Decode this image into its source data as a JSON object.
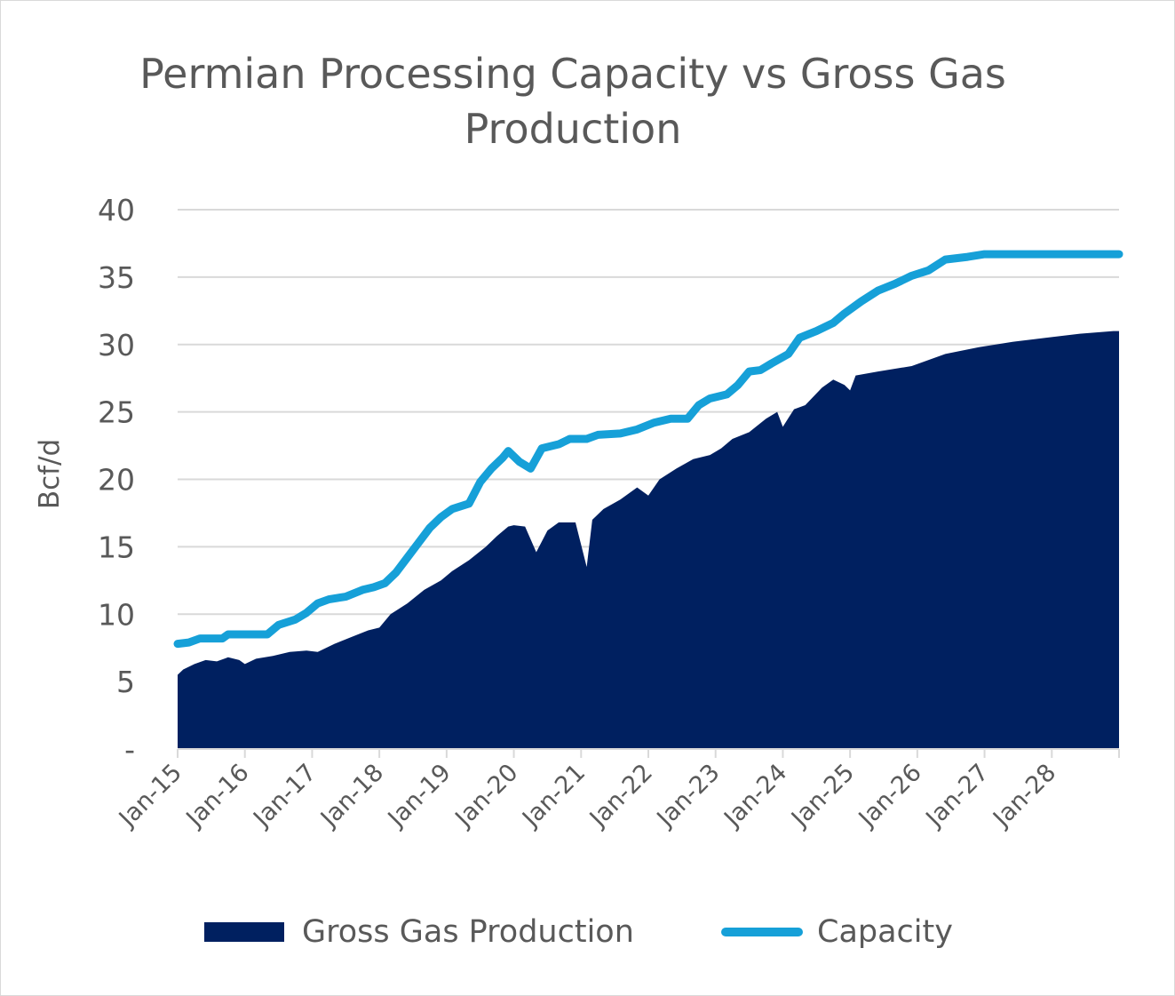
{
  "chart_data": {
    "type": "area",
    "title": "Permian Processing Capacity vs Gross Gas Production",
    "ylabel": "Bcf/d",
    "xlabel": "",
    "ylim": [
      0,
      40
    ],
    "yticks": [
      0,
      5,
      10,
      15,
      20,
      25,
      30,
      35,
      40
    ],
    "ytick_labels": [
      "-",
      "5",
      "10",
      "15",
      "20",
      "25",
      "30",
      "35",
      "40"
    ],
    "x_start": "2015-01",
    "x_end": "2028-12",
    "xtick_labels": [
      "Jan-15",
      "Jan-16",
      "Jan-17",
      "Jan-18",
      "Jan-19",
      "Jan-20",
      "Jan-21",
      "Jan-22",
      "Jan-23",
      "Jan-24",
      "Jan-25",
      "Jan-26",
      "Jan-27",
      "Jan-28"
    ],
    "grid": true,
    "legend_position": "bottom",
    "colors": {
      "production": "#002060",
      "capacity": "#16a0d8",
      "text": "#595959",
      "grid": "#d9d9d9"
    },
    "series": [
      {
        "name": "Gross Gas Production",
        "type": "area",
        "points": [
          [
            "2015-01",
            5.5
          ],
          [
            "2015-02",
            5.9
          ],
          [
            "2015-04",
            6.3
          ],
          [
            "2015-06",
            6.6
          ],
          [
            "2015-08",
            6.5
          ],
          [
            "2015-10",
            6.8
          ],
          [
            "2015-12",
            6.6
          ],
          [
            "2016-01",
            6.3
          ],
          [
            "2016-03",
            6.7
          ],
          [
            "2016-06",
            6.9
          ],
          [
            "2016-09",
            7.2
          ],
          [
            "2016-12",
            7.3
          ],
          [
            "2017-02",
            7.2
          ],
          [
            "2017-05",
            7.8
          ],
          [
            "2017-08",
            8.3
          ],
          [
            "2017-11",
            8.8
          ],
          [
            "2018-01",
            9.0
          ],
          [
            "2018-03",
            10.0
          ],
          [
            "2018-06",
            10.8
          ],
          [
            "2018-09",
            11.8
          ],
          [
            "2018-12",
            12.5
          ],
          [
            "2019-02",
            13.2
          ],
          [
            "2019-05",
            14.0
          ],
          [
            "2019-08",
            15.0
          ],
          [
            "2019-10",
            15.8
          ],
          [
            "2019-12",
            16.5
          ],
          [
            "2020-01",
            16.6
          ],
          [
            "2020-03",
            16.5
          ],
          [
            "2020-05",
            14.6
          ],
          [
            "2020-07",
            16.2
          ],
          [
            "2020-09",
            16.8
          ],
          [
            "2020-12",
            16.8
          ],
          [
            "2021-02",
            13.5
          ],
          [
            "2021-03",
            17.0
          ],
          [
            "2021-05",
            17.8
          ],
          [
            "2021-08",
            18.5
          ],
          [
            "2021-11",
            19.4
          ],
          [
            "2022-01",
            18.8
          ],
          [
            "2022-03",
            20.0
          ],
          [
            "2022-06",
            20.8
          ],
          [
            "2022-09",
            21.5
          ],
          [
            "2022-12",
            21.8
          ],
          [
            "2023-02",
            22.3
          ],
          [
            "2023-04",
            23.0
          ],
          [
            "2023-07",
            23.5
          ],
          [
            "2023-10",
            24.5
          ],
          [
            "2023-12",
            25.0
          ],
          [
            "2024-01",
            23.9
          ],
          [
            "2024-03",
            25.2
          ],
          [
            "2024-05",
            25.5
          ],
          [
            "2024-08",
            26.8
          ],
          [
            "2024-10",
            27.4
          ],
          [
            "2024-12",
            27.0
          ],
          [
            "2025-01",
            26.6
          ],
          [
            "2025-02",
            27.7
          ],
          [
            "2025-06",
            28.0
          ],
          [
            "2025-12",
            28.4
          ],
          [
            "2026-06",
            29.3
          ],
          [
            "2026-12",
            29.8
          ],
          [
            "2027-06",
            30.2
          ],
          [
            "2027-12",
            30.5
          ],
          [
            "2028-06",
            30.8
          ],
          [
            "2028-12",
            31.0
          ]
        ]
      },
      {
        "name": "Capacity",
        "type": "line",
        "points": [
          [
            "2015-01",
            7.8
          ],
          [
            "2015-03",
            7.9
          ],
          [
            "2015-05",
            8.2
          ],
          [
            "2015-09",
            8.2
          ],
          [
            "2015-10",
            8.5
          ],
          [
            "2016-05",
            8.5
          ],
          [
            "2016-07",
            9.2
          ],
          [
            "2016-10",
            9.6
          ],
          [
            "2016-12",
            10.1
          ],
          [
            "2017-02",
            10.8
          ],
          [
            "2017-04",
            11.1
          ],
          [
            "2017-07",
            11.3
          ],
          [
            "2017-10",
            11.8
          ],
          [
            "2017-12",
            12.0
          ],
          [
            "2018-02",
            12.3
          ],
          [
            "2018-04",
            13.1
          ],
          [
            "2018-06",
            14.2
          ],
          [
            "2018-08",
            15.3
          ],
          [
            "2018-10",
            16.4
          ],
          [
            "2018-12",
            17.2
          ],
          [
            "2019-02",
            17.8
          ],
          [
            "2019-05",
            18.2
          ],
          [
            "2019-07",
            19.8
          ],
          [
            "2019-09",
            20.8
          ],
          [
            "2019-11",
            21.6
          ],
          [
            "2019-12",
            22.1
          ],
          [
            "2020-02",
            21.3
          ],
          [
            "2020-04",
            20.8
          ],
          [
            "2020-06",
            22.3
          ],
          [
            "2020-09",
            22.6
          ],
          [
            "2020-11",
            23.0
          ],
          [
            "2021-02",
            23.0
          ],
          [
            "2021-04",
            23.3
          ],
          [
            "2021-08",
            23.4
          ],
          [
            "2021-11",
            23.7
          ],
          [
            "2022-02",
            24.2
          ],
          [
            "2022-05",
            24.5
          ],
          [
            "2022-08",
            24.5
          ],
          [
            "2022-10",
            25.5
          ],
          [
            "2022-12",
            26.0
          ],
          [
            "2023-03",
            26.3
          ],
          [
            "2023-05",
            27.0
          ],
          [
            "2023-07",
            28.0
          ],
          [
            "2023-09",
            28.1
          ],
          [
            "2023-11",
            28.6
          ],
          [
            "2024-02",
            29.3
          ],
          [
            "2024-04",
            30.5
          ],
          [
            "2024-07",
            31.0
          ],
          [
            "2024-10",
            31.6
          ],
          [
            "2024-12",
            32.3
          ],
          [
            "2025-03",
            33.2
          ],
          [
            "2025-06",
            34.0
          ],
          [
            "2025-09",
            34.5
          ],
          [
            "2025-12",
            35.1
          ],
          [
            "2026-03",
            35.5
          ],
          [
            "2026-06",
            36.3
          ],
          [
            "2026-10",
            36.5
          ],
          [
            "2027-01",
            36.7
          ],
          [
            "2028-12",
            36.7
          ]
        ]
      }
    ]
  }
}
